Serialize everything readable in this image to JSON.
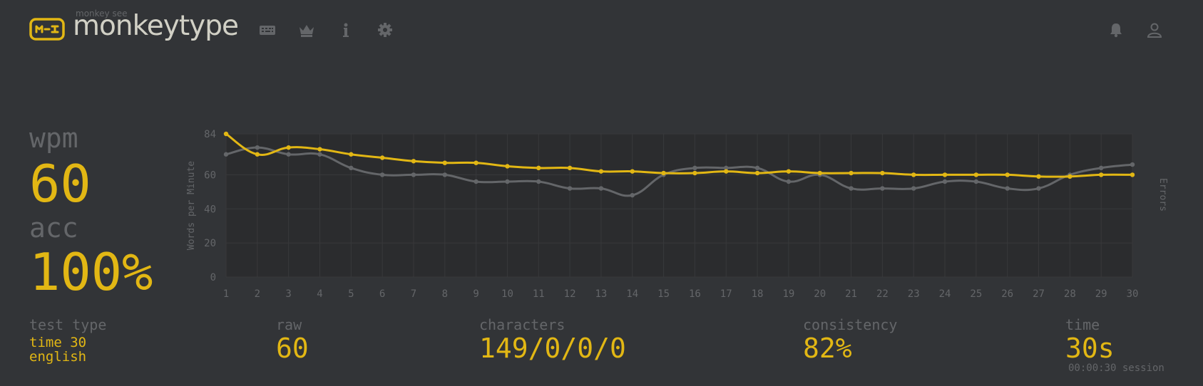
{
  "app": {
    "logo_sub": "monkey see",
    "logo_text": "monkeytype"
  },
  "nav": [
    {
      "name": "keyboard-icon"
    },
    {
      "name": "crown-icon"
    },
    {
      "name": "info-icon"
    },
    {
      "name": "gear-icon"
    }
  ],
  "header_right": [
    {
      "name": "bell-icon"
    },
    {
      "name": "user-icon"
    }
  ],
  "results": {
    "wpm_label": "wpm",
    "wpm_value": "60",
    "acc_label": "acc",
    "acc_value": "100%"
  },
  "stats": {
    "test_type_label": "test type",
    "test_type_line1": "time 30",
    "test_type_line2": "english",
    "raw_label": "raw",
    "raw_value": "60",
    "characters_label": "characters",
    "characters_value": "149/0/0/0",
    "consistency_label": "consistency",
    "consistency_value": "82%",
    "time_label": "time",
    "time_value": "30s",
    "session_text": "00:00:30 session"
  },
  "colors": {
    "background": "#323437",
    "accent": "#e2b714",
    "muted": "#646669",
    "text": "#d1d0c5"
  },
  "chart_data": {
    "type": "line",
    "ylabel": "Words per Minute",
    "y2label": "Errors",
    "x": [
      1,
      2,
      3,
      4,
      5,
      6,
      7,
      8,
      9,
      10,
      11,
      12,
      13,
      14,
      15,
      16,
      17,
      18,
      19,
      20,
      21,
      22,
      23,
      24,
      25,
      26,
      27,
      28,
      29,
      30
    ],
    "yticks": [
      0,
      20,
      40,
      60,
      84
    ],
    "ylim": [
      0,
      84
    ],
    "grid": true,
    "series": [
      {
        "color": "#e2b714",
        "values": [
          84,
          72,
          76,
          75,
          72,
          70,
          68,
          67,
          67,
          65,
          64,
          64,
          62,
          62,
          61,
          61,
          62,
          61,
          62,
          61,
          61,
          61,
          60,
          60,
          60,
          60,
          59,
          59,
          60,
          60
        ]
      },
      {
        "color": "#646669",
        "values": [
          72,
          76,
          72,
          72,
          64,
          60,
          60,
          60,
          56,
          56,
          56,
          52,
          52,
          48,
          60,
          64,
          64,
          64,
          56,
          60,
          52,
          52,
          52,
          56,
          56,
          52,
          52,
          60,
          64,
          66
        ]
      }
    ]
  }
}
